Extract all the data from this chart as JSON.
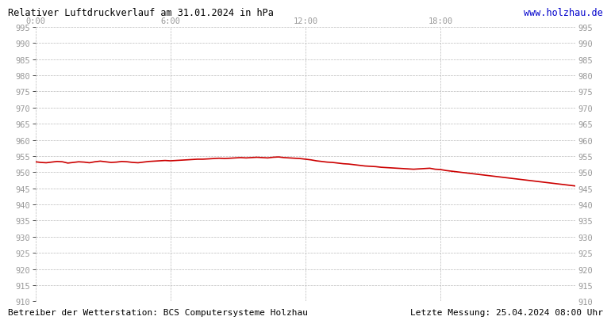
{
  "title": "Relativer Luftdruckverlauf am 31.01.2024 in hPa",
  "url_text": "www.holzhau.de",
  "footer_left": "Betreiber der Wetterstation: BCS Computersysteme Holzhau",
  "footer_right": "Letzte Messung: 25.04.2024 08:00 Uhr",
  "ylim": [
    910,
    995
  ],
  "ytick_step": 5,
  "xtick_labels": [
    "0:00",
    "6:00",
    "12:00",
    "18:00"
  ],
  "xtick_positions": [
    0.0,
    0.25,
    0.5,
    0.75
  ],
  "line_color": "#cc0000",
  "background_color": "#ffffff",
  "plot_bg_color": "#ffffff",
  "grid_color": "#bbbbbb",
  "title_color": "#000000",
  "url_color": "#0000cc",
  "footer_color": "#000000",
  "label_color": "#999999",
  "pressure_x": [
    0.0,
    0.01,
    0.02,
    0.03,
    0.04,
    0.05,
    0.06,
    0.07,
    0.08,
    0.09,
    0.1,
    0.11,
    0.12,
    0.13,
    0.14,
    0.15,
    0.16,
    0.17,
    0.18,
    0.19,
    0.2,
    0.21,
    0.22,
    0.23,
    0.24,
    0.25,
    0.26,
    0.27,
    0.28,
    0.29,
    0.3,
    0.31,
    0.32,
    0.33,
    0.34,
    0.35,
    0.36,
    0.37,
    0.38,
    0.39,
    0.4,
    0.41,
    0.42,
    0.43,
    0.44,
    0.45,
    0.46,
    0.47,
    0.48,
    0.49,
    0.5,
    0.51,
    0.52,
    0.53,
    0.54,
    0.55,
    0.56,
    0.57,
    0.58,
    0.59,
    0.6,
    0.61,
    0.62,
    0.63,
    0.64,
    0.65,
    0.66,
    0.67,
    0.68,
    0.69,
    0.7,
    0.71,
    0.72,
    0.73,
    0.74,
    0.75,
    0.76,
    0.77,
    0.78,
    0.79,
    0.8,
    0.81,
    0.82,
    0.83,
    0.84,
    0.85,
    0.86,
    0.87,
    0.88,
    0.89,
    0.9,
    0.91,
    0.92,
    0.93,
    0.94,
    0.95,
    0.96,
    0.97,
    0.98,
    0.99,
    1.0
  ],
  "pressure_y": [
    953.2,
    953.0,
    952.9,
    953.1,
    953.3,
    953.2,
    952.8,
    953.0,
    953.2,
    953.1,
    952.9,
    953.2,
    953.4,
    953.2,
    953.0,
    953.1,
    953.3,
    953.2,
    953.0,
    952.9,
    953.1,
    953.3,
    953.4,
    953.5,
    953.6,
    953.5,
    953.6,
    953.7,
    953.8,
    953.9,
    954.0,
    954.0,
    954.1,
    954.2,
    954.3,
    954.2,
    954.3,
    954.4,
    954.5,
    954.4,
    954.5,
    954.6,
    954.5,
    954.4,
    954.6,
    954.7,
    954.5,
    954.4,
    954.3,
    954.2,
    954.0,
    953.8,
    953.5,
    953.3,
    953.1,
    953.0,
    952.8,
    952.6,
    952.5,
    952.3,
    952.1,
    951.9,
    951.8,
    951.7,
    951.5,
    951.4,
    951.3,
    951.2,
    951.1,
    951.0,
    950.9,
    951.0,
    951.1,
    951.2,
    950.9,
    950.8,
    950.5,
    950.3,
    950.1,
    949.9,
    949.7,
    949.5,
    949.3,
    949.1,
    948.9,
    948.7,
    948.5,
    948.3,
    948.1,
    947.9,
    947.7,
    947.5,
    947.3,
    947.1,
    946.9,
    946.7,
    946.5,
    946.3,
    946.1,
    945.9,
    945.7
  ]
}
